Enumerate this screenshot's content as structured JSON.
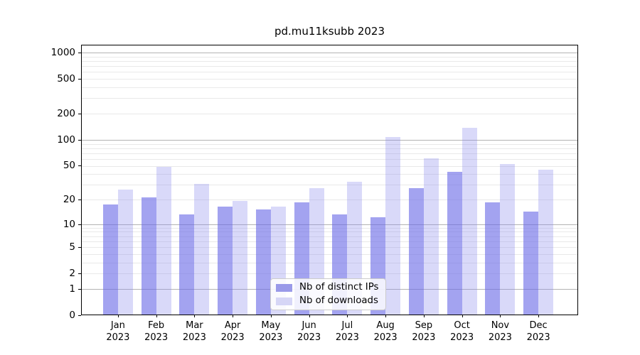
{
  "title": "pd.mu11ksubb 2023",
  "chart_data": {
    "type": "bar",
    "title": "pd.mu11ksubb 2023",
    "categories": [
      "Jan 2023",
      "Feb 2023",
      "Mar 2023",
      "Apr 2023",
      "May 2023",
      "Jun 2023",
      "Jul 2023",
      "Aug 2023",
      "Sep 2023",
      "Oct 2023",
      "Nov 2023",
      "Dec 2023"
    ],
    "series": [
      {
        "name": "Nb of distinct IPs",
        "values": [
          17,
          21,
          13,
          16,
          15,
          18,
          13,
          12,
          27,
          42,
          18,
          14
        ],
        "fill": "rgba(107,107,231,0.62)",
        "legend_color": "#9a9ae9"
      },
      {
        "name": "Nb of downloads",
        "values": [
          26,
          48,
          30,
          19,
          16,
          27,
          32,
          105,
          60,
          135,
          51,
          44
        ],
        "fill": "rgba(136,136,236,0.32)",
        "legend_color": "#d6d6f6"
      }
    ],
    "yscale": "log1p",
    "y_ticks": [
      0,
      1,
      2,
      5,
      10,
      20,
      50,
      100,
      200,
      500,
      1000
    ],
    "ylim": [
      0,
      1230
    ],
    "xlabel": "",
    "ylabel": "",
    "grid": true,
    "legend_position": "lower center",
    "colors": {
      "bar_distinct_ips": "#a3a3f0",
      "bar_downloads": "#d9d9f8",
      "grid_major": "#b3b3b3",
      "grid_minor": "#e9e9e9",
      "spine": "#000000"
    }
  }
}
